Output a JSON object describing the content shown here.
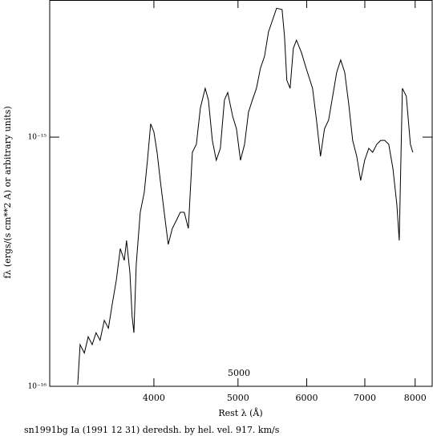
{
  "chart_data": {
    "type": "line",
    "xlabel": "Rest λ (Å)",
    "ylabel": "fλ (ergs/(s cm**2 A) or arbitrary units)",
    "footer": "sn1991bg Ia (1991 12 31) deredsh. by hel. vel.   917. km/s",
    "annotation": "5000",
    "xlog": true,
    "ylog": true,
    "color": "#000000",
    "xlim": [
      3034,
      8370
    ],
    "ylim": [
      1e-16,
      3.55e-15
    ],
    "xticks": [
      4000,
      5000,
      6000,
      7000,
      8000
    ],
    "yticks": [
      {
        "value": 1e-16,
        "label": "10⁻¹⁶"
      },
      {
        "value": 1e-15,
        "label": "10⁻¹⁵"
      }
    ],
    "x": [
      3268,
      3289,
      3326,
      3360,
      3396,
      3431,
      3468,
      3507,
      3545,
      3581,
      3620,
      3659,
      3698,
      3720,
      3753,
      3776,
      3793,
      3817,
      3858,
      3899,
      3932,
      3966,
      4000,
      4034,
      4068,
      4111,
      4155,
      4200,
      4245,
      4290,
      4336,
      4383,
      4430,
      4477,
      4525,
      4583,
      4622,
      4671,
      4720,
      4771,
      4823,
      4865,
      4930,
      4980,
      5033,
      5088,
      5141,
      5195,
      5251,
      5307,
      5364,
      5421,
      5480,
      5539,
      5620,
      5656,
      5692,
      5741,
      5790,
      5839,
      5915,
      5991,
      6093,
      6157,
      6223,
      6290,
      6359,
      6428,
      6497,
      6566,
      6637,
      6709,
      6777,
      6851,
      6924,
      6997,
      7073,
      7148,
      7225,
      7301,
      7380,
      7459,
      7541,
      7621,
      7669,
      7733,
      7815,
      7899,
      7950
    ],
    "values": [
      1.015e-16,
      1.47e-16,
      1.36e-16,
      1.58e-16,
      1.47e-16,
      1.64e-16,
      1.53e-16,
      1.84e-16,
      1.71e-16,
      2.13e-16,
      2.66e-16,
      3.57e-16,
      3.2e-16,
      3.85e-16,
      2.86e-16,
      1.9e-16,
      1.64e-16,
      3.08e-16,
      4.99e-16,
      6e-16,
      8.07e-16,
      1.13e-15,
      1.05e-15,
      8.69e-16,
      6.7e-16,
      4.99e-16,
      3.71e-16,
      4.3e-16,
      4.63e-16,
      4.99e-16,
      4.99e-16,
      4.3e-16,
      8.69e-16,
      9.36e-16,
      1.31e-15,
      1.57e-15,
      1.41e-15,
      9.71e-16,
      8.07e-16,
      9.02e-16,
      1.41e-15,
      1.51e-15,
      1.21e-15,
      1.08e-15,
      8.07e-16,
      9.36e-16,
      1.26e-15,
      1.41e-15,
      1.57e-15,
      1.89e-15,
      2.11e-15,
      2.64e-15,
      2.95e-15,
      3.29e-15,
      3.25e-15,
      2.54e-15,
      1.69e-15,
      1.57e-15,
      2.27e-15,
      2.45e-15,
      2.19e-15,
      1.89e-15,
      1.57e-15,
      1.17e-15,
      8.37e-16,
      1.08e-15,
      1.17e-15,
      1.46e-15,
      1.82e-15,
      2.04e-15,
      1.82e-15,
      1.35e-15,
      9.71e-16,
      8.37e-16,
      6.7e-16,
      8.07e-16,
      9.02e-16,
      8.69e-16,
      9.36e-16,
      9.71e-16,
      9.71e-16,
      9.36e-16,
      7.49e-16,
      5.37e-16,
      3.85e-16,
      1.57e-15,
      1.46e-15,
      9.36e-16,
      8.69e-16
    ]
  }
}
